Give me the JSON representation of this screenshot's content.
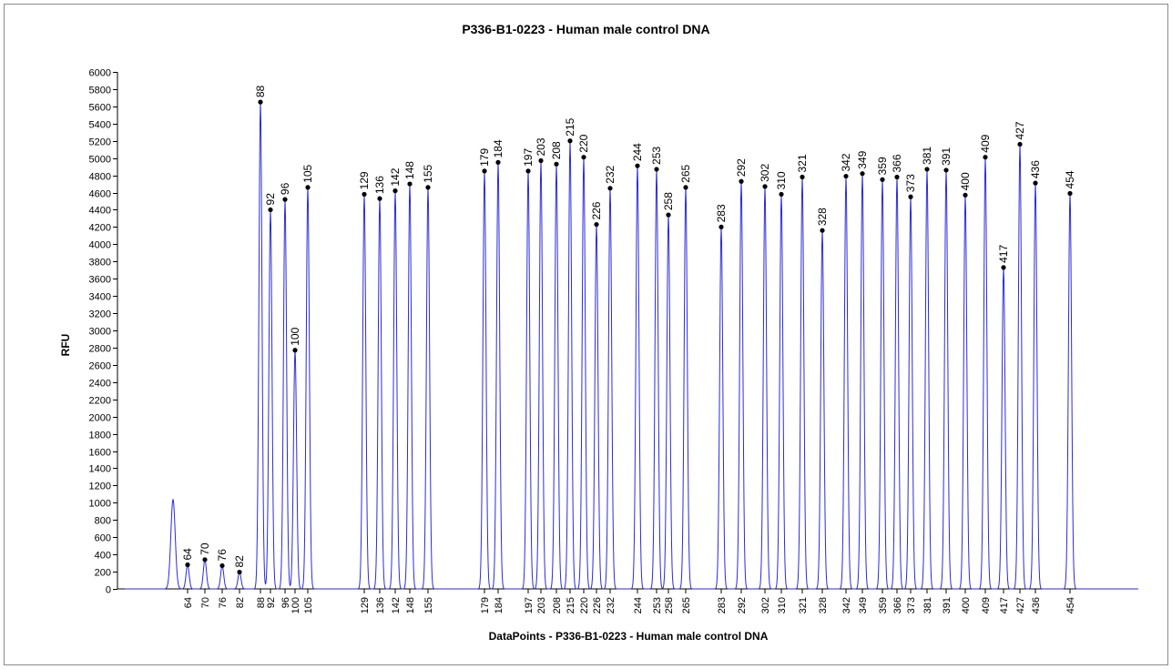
{
  "chart_data": {
    "type": "line",
    "title": "P336-B1-0223 - Human male control DNA",
    "xlabel": "DataPoints - P336-B1-0223 - Human male control DNA",
    "ylabel": "RFU",
    "ylim": [
      0,
      6000
    ],
    "ytick_step": 200,
    "grid": false,
    "line_color": "#2b2bd9",
    "marker_color": "#000000",
    "x_tick_labels": [
      "64",
      "70",
      "76",
      "82",
      "88",
      "92",
      "96",
      "100",
      "105",
      "129",
      "136",
      "142",
      "148",
      "155",
      "179",
      "184",
      "197",
      "203",
      "208",
      "215",
      "220",
      "226",
      "232",
      "244",
      "253",
      "258",
      "265",
      "283",
      "292",
      "302",
      "310",
      "321",
      "328",
      "342",
      "349",
      "359",
      "366",
      "373",
      "381",
      "391",
      "400",
      "409",
      "417",
      "427",
      "436",
      "454"
    ],
    "peaks": [
      {
        "size": "64",
        "rfu": 280
      },
      {
        "size": "70",
        "rfu": 340
      },
      {
        "size": "76",
        "rfu": 270
      },
      {
        "size": "82",
        "rfu": 195
      },
      {
        "size": "88",
        "rfu": 5650
      },
      {
        "size": "92",
        "rfu": 4400
      },
      {
        "size": "96",
        "rfu": 4520
      },
      {
        "size": "100",
        "rfu": 2770
      },
      {
        "size": "105",
        "rfu": 4660
      },
      {
        "size": "129",
        "rfu": 4580
      },
      {
        "size": "136",
        "rfu": 4530
      },
      {
        "size": "142",
        "rfu": 4620
      },
      {
        "size": "148",
        "rfu": 4700
      },
      {
        "size": "155",
        "rfu": 4660
      },
      {
        "size": "179",
        "rfu": 4850
      },
      {
        "size": "184",
        "rfu": 4950
      },
      {
        "size": "197",
        "rfu": 4850
      },
      {
        "size": "203",
        "rfu": 4970
      },
      {
        "size": "208",
        "rfu": 4930
      },
      {
        "size": "215",
        "rfu": 5200
      },
      {
        "size": "220",
        "rfu": 5010
      },
      {
        "size": "226",
        "rfu": 4230
      },
      {
        "size": "232",
        "rfu": 4650
      },
      {
        "size": "244",
        "rfu": 4910
      },
      {
        "size": "253",
        "rfu": 4870
      },
      {
        "size": "258",
        "rfu": 4340
      },
      {
        "size": "265",
        "rfu": 4660
      },
      {
        "size": "283",
        "rfu": 4200
      },
      {
        "size": "292",
        "rfu": 4730
      },
      {
        "size": "302",
        "rfu": 4670
      },
      {
        "size": "310",
        "rfu": 4580
      },
      {
        "size": "321",
        "rfu": 4780
      },
      {
        "size": "328",
        "rfu": 4160
      },
      {
        "size": "342",
        "rfu": 4790
      },
      {
        "size": "349",
        "rfu": 4820
      },
      {
        "size": "359",
        "rfu": 4750
      },
      {
        "size": "366",
        "rfu": 4780
      },
      {
        "size": "373",
        "rfu": 4550
      },
      {
        "size": "381",
        "rfu": 4870
      },
      {
        "size": "391",
        "rfu": 4860
      },
      {
        "size": "400",
        "rfu": 4570
      },
      {
        "size": "409",
        "rfu": 5010
      },
      {
        "size": "417",
        "rfu": 3730
      },
      {
        "size": "427",
        "rfu": 5160
      },
      {
        "size": "436",
        "rfu": 4710
      },
      {
        "size": "454",
        "rfu": 4590
      }
    ],
    "unlabeled_peaks": [
      {
        "rfu": 1040
      }
    ]
  }
}
